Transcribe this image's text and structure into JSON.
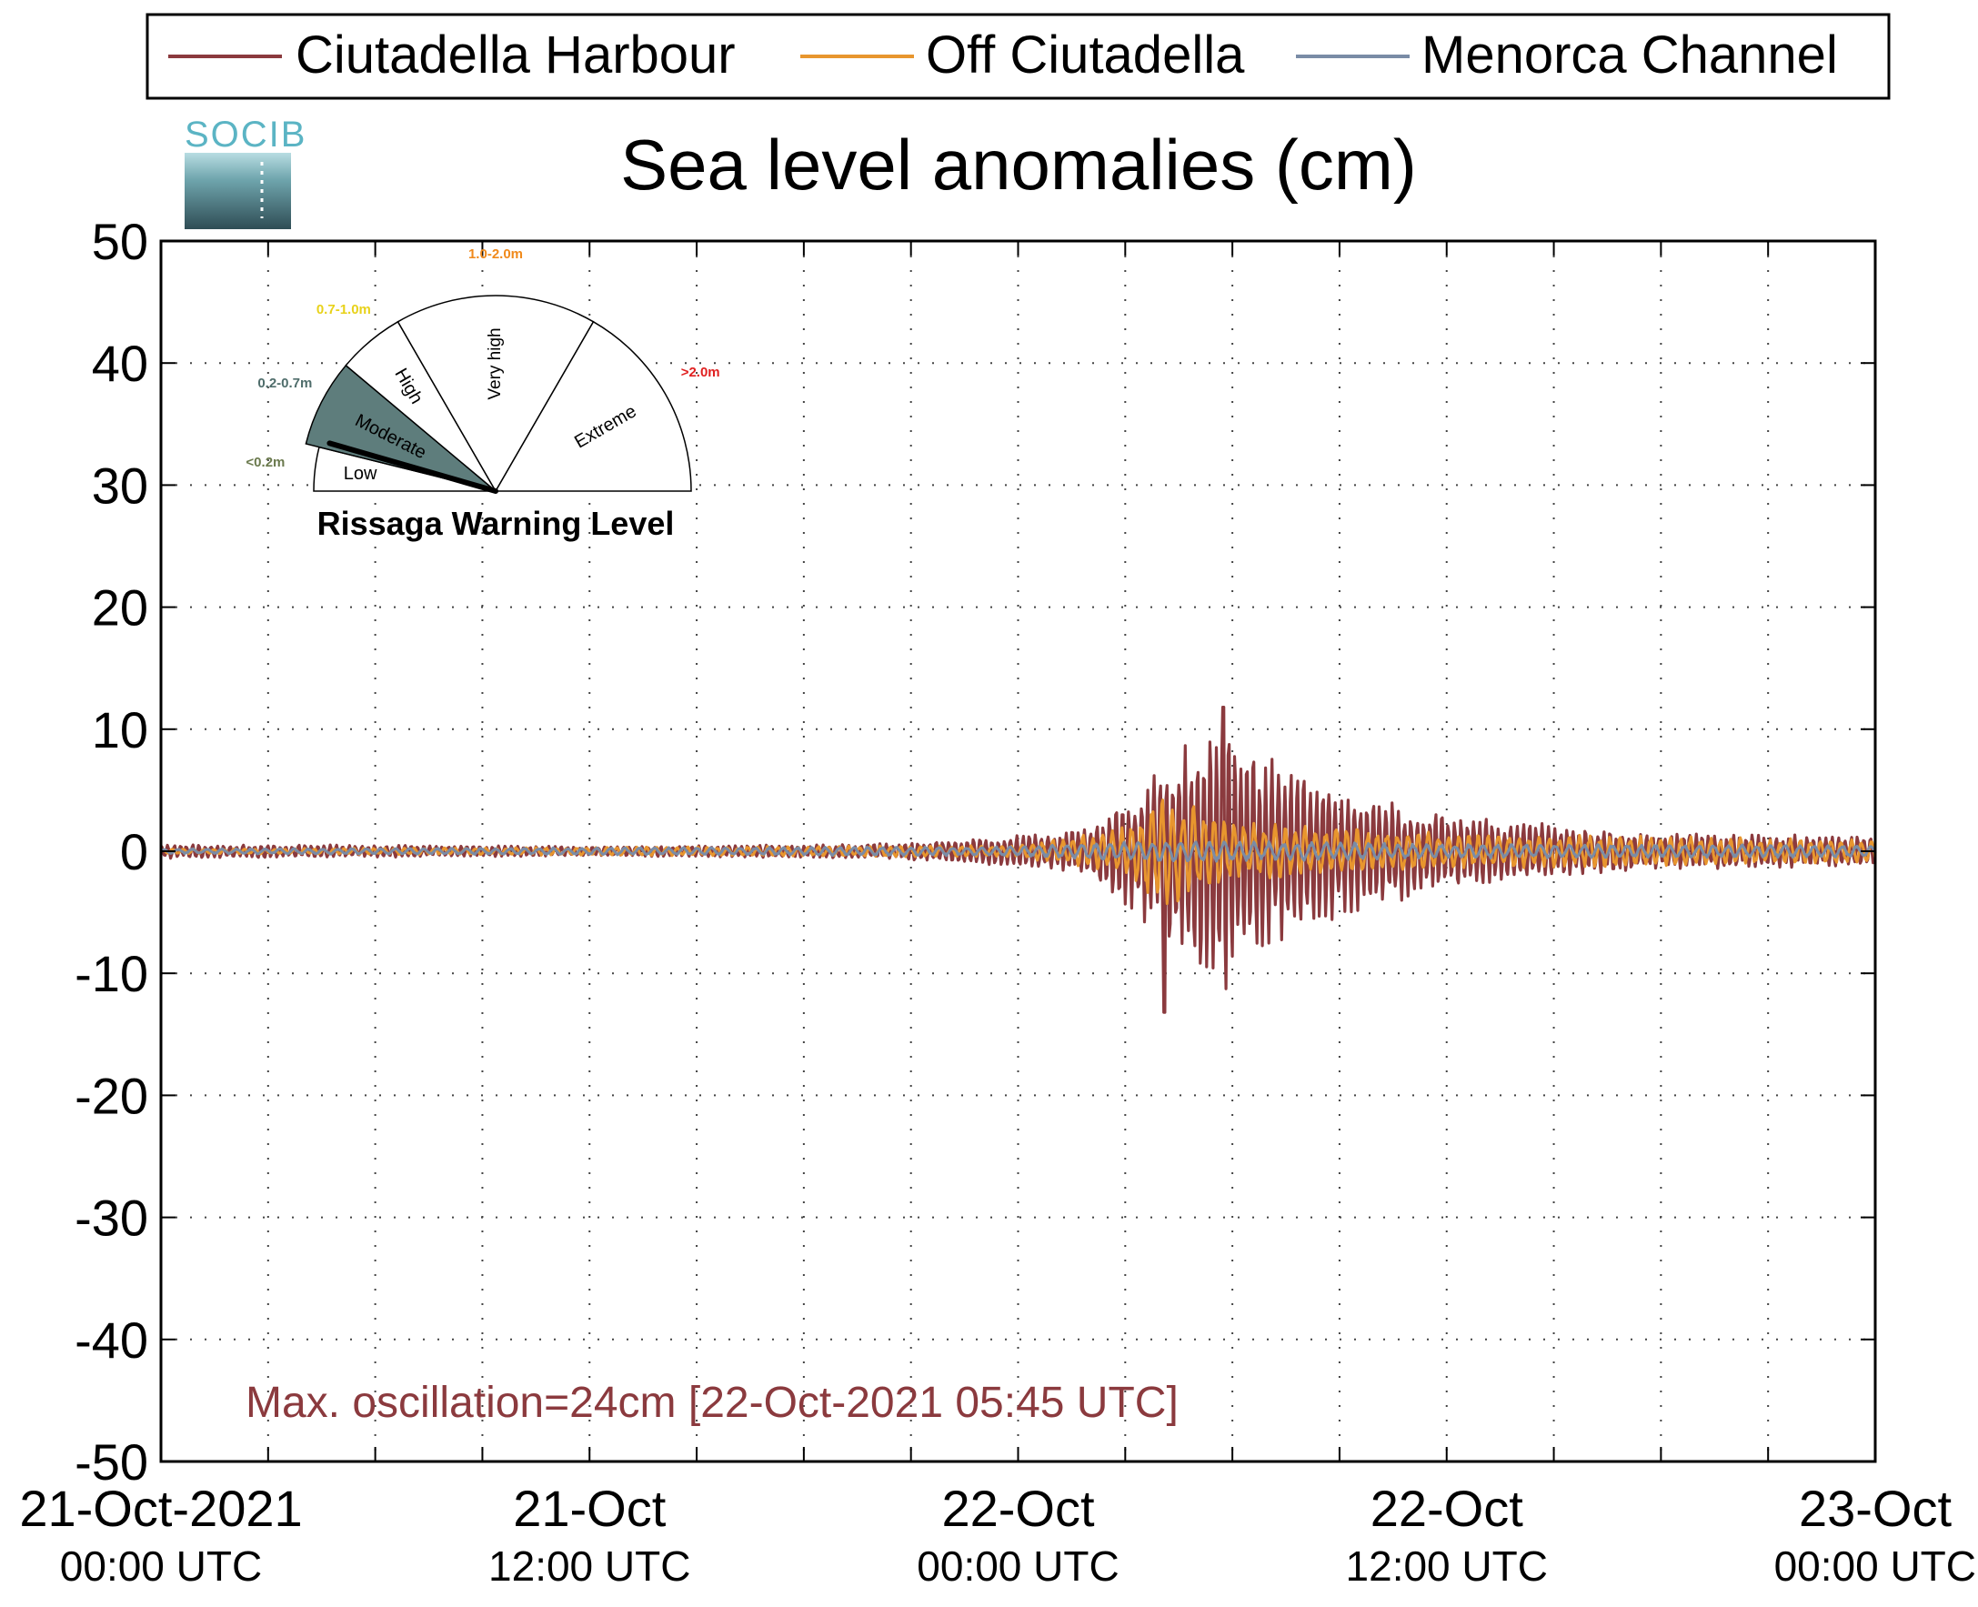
{
  "logo": {
    "text": "SOCIB"
  },
  "chart_data": {
    "type": "line",
    "title": "Sea level anomalies (cm)",
    "ylim": [
      -50,
      50
    ],
    "yticks": [
      50,
      40,
      30,
      20,
      10,
      0,
      -10,
      -20,
      -30,
      -40,
      -50
    ],
    "xlim": [
      "2021-10-21 00:00",
      "2021-10-23 00:00"
    ],
    "x_major_labels": [
      {
        "line1": "21-Oct-2021",
        "line2": "00:00 UTC",
        "t": "2021-10-21 00:00"
      },
      {
        "line1": "21-Oct",
        "line2": "12:00 UTC",
        "t": "2021-10-21 12:00"
      },
      {
        "line1": "22-Oct",
        "line2": "00:00 UTC",
        "t": "2021-10-22 00:00"
      },
      {
        "line1": "22-Oct",
        "line2": "12:00 UTC",
        "t": "2021-10-22 12:00"
      },
      {
        "line1": "23-Oct",
        "line2": "00:00 UTC",
        "t": "2021-10-23 00:00"
      }
    ],
    "grid": true,
    "legend_position": "top",
    "series": [
      {
        "name": "Ciutadella Harbour",
        "color": "#8B3A3E",
        "envelope": [
          {
            "t": "2021-10-21 00:00",
            "amp": 0.6
          },
          {
            "t": "2021-10-21 12:00",
            "amp": 0.4
          },
          {
            "t": "2021-10-21 20:00",
            "amp": 0.6
          },
          {
            "t": "2021-10-22 00:00",
            "amp": 1.3
          },
          {
            "t": "2021-10-22 02:00",
            "amp": 2.0
          },
          {
            "t": "2021-10-22 04:00",
            "amp": 7.0
          },
          {
            "t": "2021-10-22 05:45",
            "amp": 12.0
          },
          {
            "t": "2021-10-22 07:00",
            "amp": 8.0
          },
          {
            "t": "2021-10-22 08:30",
            "amp": 6.0
          },
          {
            "t": "2021-10-22 12:00",
            "amp": 3.0
          },
          {
            "t": "2021-10-22 18:00",
            "amp": 1.5
          },
          {
            "t": "2021-10-23 00:00",
            "amp": 1.3
          }
        ],
        "peak_max": {
          "t": "2021-10-22 05:45",
          "y": 11.8
        },
        "peak_min": {
          "t": "2021-10-22 04:05",
          "y": -13.2
        }
      },
      {
        "name": "Off Ciutadella",
        "color": "#E8962E",
        "envelope": [
          {
            "t": "2021-10-21 00:00",
            "amp": 0.2
          },
          {
            "t": "2021-10-22 00:00",
            "amp": 0.5
          },
          {
            "t": "2021-10-22 03:00",
            "amp": 2.0
          },
          {
            "t": "2021-10-22 04:05",
            "amp": 5.0
          },
          {
            "t": "2021-10-22 06:00",
            "amp": 2.5
          },
          {
            "t": "2021-10-22 12:00",
            "amp": 1.5
          },
          {
            "t": "2021-10-23 00:00",
            "amp": 1.0
          }
        ]
      },
      {
        "name": "Menorca Channel",
        "color": "#7A8CA6",
        "envelope": [
          {
            "t": "2021-10-21 00:00",
            "amp": 0.2
          },
          {
            "t": "2021-10-22 00:00",
            "amp": 0.4
          },
          {
            "t": "2021-10-22 04:00",
            "amp": 0.9
          },
          {
            "t": "2021-10-22 12:00",
            "amp": 0.6
          },
          {
            "t": "2021-10-23 00:00",
            "amp": 0.5
          }
        ]
      }
    ],
    "annotation": "Max. oscillation=24cm [22-Oct-2021 05:45 UTC]"
  },
  "gauge": {
    "title": "Rissaga Warning Level",
    "level": "Moderate",
    "sectors": [
      {
        "name": "Low",
        "range": "<0.2m",
        "range_color": "#6B7A4E",
        "active": false
      },
      {
        "name": "Moderate",
        "range": "0.2-0.7m",
        "range_color": "#4F6D6B",
        "active": true
      },
      {
        "name": "High",
        "range": "0.7-1.0m",
        "range_color": "#E8D21A",
        "active": false
      },
      {
        "name": "Very high",
        "range": "1.0-2.0m",
        "range_color": "#F08A1C",
        "active": false
      },
      {
        "name": "Extreme",
        "range": ">2.0m",
        "range_color": "#E02020",
        "active": false
      }
    ],
    "active_fill": "#5E7D7C",
    "needle_value": 0.24
  }
}
